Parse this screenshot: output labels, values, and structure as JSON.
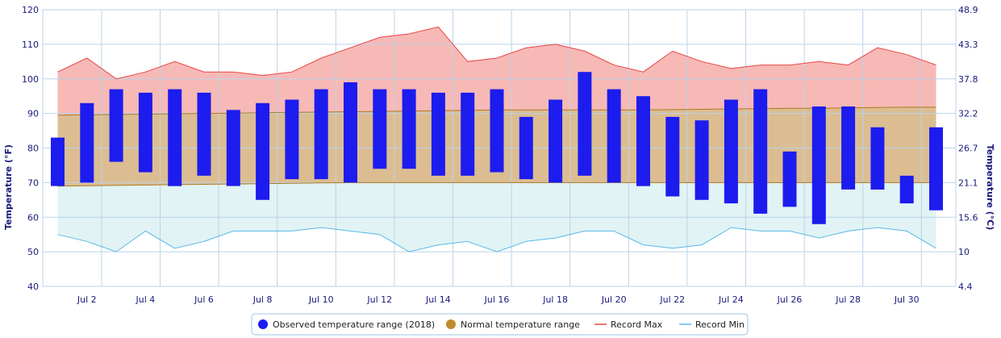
{
  "chart_data": {
    "type": "bar",
    "left_axis": {
      "label": "Temperature (°F)",
      "ticks": [
        "40",
        "50",
        "60",
        "70",
        "80",
        "90",
        "100",
        "110",
        "120"
      ],
      "range": [
        40,
        120
      ]
    },
    "right_axis": {
      "label": "Temperature (°C)",
      "ticks": [
        "4.4",
        "10",
        "15.6",
        "21.1",
        "26.7",
        "32.2",
        "37.8",
        "43.3",
        "48.9"
      ]
    },
    "x_ticks": [
      "Jul 2",
      "Jul 4",
      "Jul 6",
      "Jul 8",
      "Jul 10",
      "Jul 12",
      "Jul 14",
      "Jul 16",
      "Jul 18",
      "Jul 20",
      "Jul 22",
      "Jul 24",
      "Jul 26",
      "Jul 28",
      "Jul 30"
    ],
    "days": [
      1,
      2,
      3,
      4,
      5,
      6,
      7,
      8,
      9,
      10,
      11,
      12,
      13,
      14,
      15,
      16,
      17,
      18,
      19,
      20,
      21,
      22,
      23,
      24,
      25,
      26,
      27,
      28,
      29,
      30,
      31
    ],
    "grid": true,
    "legend_position": "bottom",
    "series": [
      {
        "name": "Observed temperature range (2018)",
        "color": "#1c1cee",
        "low": [
          69,
          70,
          76,
          73,
          69,
          72,
          69,
          65,
          71,
          71,
          70,
          74,
          74,
          72,
          72,
          73,
          71,
          70,
          72,
          70,
          69,
          66,
          65,
          64,
          61,
          63,
          58,
          68,
          68,
          64,
          62
        ],
        "high": [
          83,
          93,
          97,
          96,
          97,
          96,
          91,
          93,
          94,
          97,
          99,
          97,
          97,
          96,
          96,
          97,
          89,
          94,
          102,
          97,
          95,
          89,
          88,
          94,
          97,
          79,
          92,
          92,
          86,
          72,
          86
        ]
      },
      {
        "name": "Normal temperature range",
        "color": "#c08a2a",
        "low": [
          69,
          69.1,
          69.2,
          69.3,
          69.4,
          69.5,
          69.6,
          69.7,
          69.8,
          69.9,
          70,
          70,
          70,
          70,
          70,
          70,
          70,
          70,
          70,
          70,
          70,
          70,
          70,
          70,
          70,
          70,
          70,
          70,
          70,
          70,
          70
        ],
        "high": [
          89.5,
          89.6,
          89.7,
          89.8,
          89.9,
          90,
          90.1,
          90.2,
          90.3,
          90.4,
          90.5,
          90.6,
          90.7,
          90.8,
          90.9,
          91,
          91,
          91,
          91,
          91,
          91,
          91.1,
          91.2,
          91.3,
          91.4,
          91.5,
          91.5,
          91.6,
          91.7,
          91.8,
          91.8
        ]
      },
      {
        "name": "Record Max",
        "color": "#e84545",
        "values": [
          102,
          106,
          100,
          102,
          105,
          102,
          102,
          101,
          102,
          106,
          109,
          112,
          113,
          115,
          105,
          106,
          109,
          110,
          108,
          104,
          102,
          108,
          105,
          103,
          104,
          104,
          105,
          104,
          109,
          107,
          104
        ]
      },
      {
        "name": "Record Min",
        "color": "#5ab8e8",
        "values": [
          55,
          53,
          50,
          56,
          51,
          53,
          56,
          56,
          56,
          57,
          56,
          55,
          50,
          52,
          53,
          50,
          53,
          54,
          56,
          56,
          52,
          51,
          52,
          57,
          56,
          56,
          54,
          56,
          57,
          56,
          51
        ]
      }
    ]
  }
}
